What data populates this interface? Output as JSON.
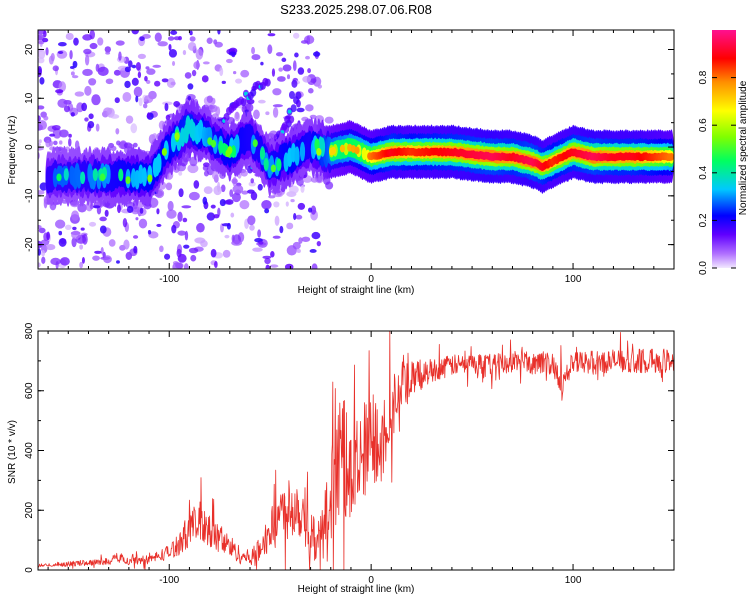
{
  "chart_data": [
    {
      "type": "heatmap",
      "title": "S233.2025.298.07.06.R08",
      "xlabel": "Height of straight line (km)",
      "ylabel": "Frequency (Hz)",
      "xlim": [
        -165,
        150
      ],
      "ylim": [
        -25,
        24
      ],
      "xticks": [
        -100,
        0,
        100
      ],
      "yticks": [
        -20,
        -10,
        0,
        10,
        20
      ],
      "xtick_labels": [
        "-100",
        "0",
        "100"
      ],
      "ytick_labels": [
        "-20",
        "-10",
        "0",
        "10",
        "20"
      ],
      "colorbar": {
        "label": "Normalized spectral amplitude",
        "range": [
          0,
          1
        ],
        "ticks": [
          0.0,
          0.2,
          0.4,
          0.6,
          0.8
        ],
        "tick_labels": [
          "0.0",
          "0.2",
          "0.4",
          "0.6",
          "0.8"
        ],
        "colors": [
          "#e8d8ff",
          "#7b00ff",
          "#0000ff",
          "#00e5ff",
          "#00ff00",
          "#ffff00",
          "#ff8000",
          "#ff0000",
          "#ff00aa"
        ]
      },
      "ridge": {
        "x": [
          -150,
          -130,
          -110,
          -100,
          -90,
          -80,
          -70,
          -60,
          -50,
          -40,
          -30,
          -20,
          -10,
          0,
          10,
          20,
          40,
          60,
          70,
          80,
          85,
          90,
          100,
          110,
          120,
          130,
          140,
          148
        ],
        "y": [
          -6,
          -6,
          -6,
          0,
          4,
          2,
          -1,
          2,
          -4,
          -2,
          0,
          -1,
          0,
          -2,
          -1,
          -1,
          -1,
          -2,
          -2,
          -3,
          -4,
          -3,
          -1,
          -2,
          -2,
          -2,
          -2,
          -2
        ],
        "amplitude": [
          0.45,
          0.5,
          0.55,
          0.55,
          0.6,
          0.5,
          0.55,
          0.5,
          0.5,
          0.55,
          0.5,
          0.7,
          0.75,
          0.8,
          0.9,
          0.85,
          0.9,
          0.95,
          0.9,
          0.95,
          0.9,
          0.85,
          0.9,
          0.95,
          0.9,
          0.9,
          0.85,
          0.8
        ]
      },
      "branches": [
        {
          "x": [
            -80,
            -70,
            -60,
            -50
          ],
          "y": [
            2,
            7,
            11,
            14
          ]
        },
        {
          "x": [
            -60,
            -50,
            -40,
            -35
          ],
          "y": [
            -5,
            0,
            5,
            12
          ]
        },
        {
          "x": [
            -50,
            -45,
            -40,
            -37
          ],
          "y": [
            -3,
            2,
            8,
            16
          ]
        }
      ]
    },
    {
      "type": "line",
      "xlabel": "Height of straight line (km)",
      "ylabel": "SNR (10 * v/v)",
      "xlim": [
        -165,
        150
      ],
      "ylim": [
        0,
        800
      ],
      "xticks": [
        -100,
        0,
        100
      ],
      "yticks": [
        0,
        200,
        400,
        600,
        800
      ],
      "xtick_labels": [
        "-100",
        "0",
        "100"
      ],
      "ytick_labels": [
        "0",
        "200",
        "400",
        "600",
        "800"
      ],
      "series": [
        {
          "name": "SNR",
          "color": "#e8302a",
          "x": [
            -165,
            -150,
            -140,
            -130,
            -125,
            -120,
            -110,
            -100,
            -95,
            -90,
            -85,
            -80,
            -75,
            -70,
            -65,
            -60,
            -55,
            -50,
            -45,
            -40,
            -35,
            -30,
            -25,
            -20,
            -15,
            -10,
            -5,
            0,
            5,
            10,
            15,
            20,
            25,
            30,
            40,
            50,
            60,
            70,
            80,
            90,
            95,
            100,
            110,
            120,
            130,
            140,
            150
          ],
          "y": [
            15,
            20,
            25,
            30,
            45,
            30,
            35,
            60,
            90,
            140,
            160,
            130,
            100,
            80,
            50,
            40,
            70,
            130,
            180,
            220,
            210,
            120,
            90,
            250,
            400,
            300,
            350,
            420,
            450,
            550,
            600,
            640,
            650,
            670,
            685,
            690,
            690,
            695,
            695,
            690,
            630,
            690,
            695,
            700,
            700,
            700,
            700
          ],
          "noise": [
            5,
            8,
            10,
            12,
            15,
            12,
            15,
            25,
            40,
            60,
            70,
            60,
            50,
            40,
            30,
            25,
            40,
            70,
            90,
            110,
            110,
            80,
            80,
            150,
            200,
            170,
            180,
            180,
            160,
            120,
            80,
            60,
            50,
            40,
            35,
            35,
            35,
            35,
            40,
            40,
            50,
            40,
            40,
            40,
            40,
            40,
            40
          ]
        }
      ]
    }
  ]
}
